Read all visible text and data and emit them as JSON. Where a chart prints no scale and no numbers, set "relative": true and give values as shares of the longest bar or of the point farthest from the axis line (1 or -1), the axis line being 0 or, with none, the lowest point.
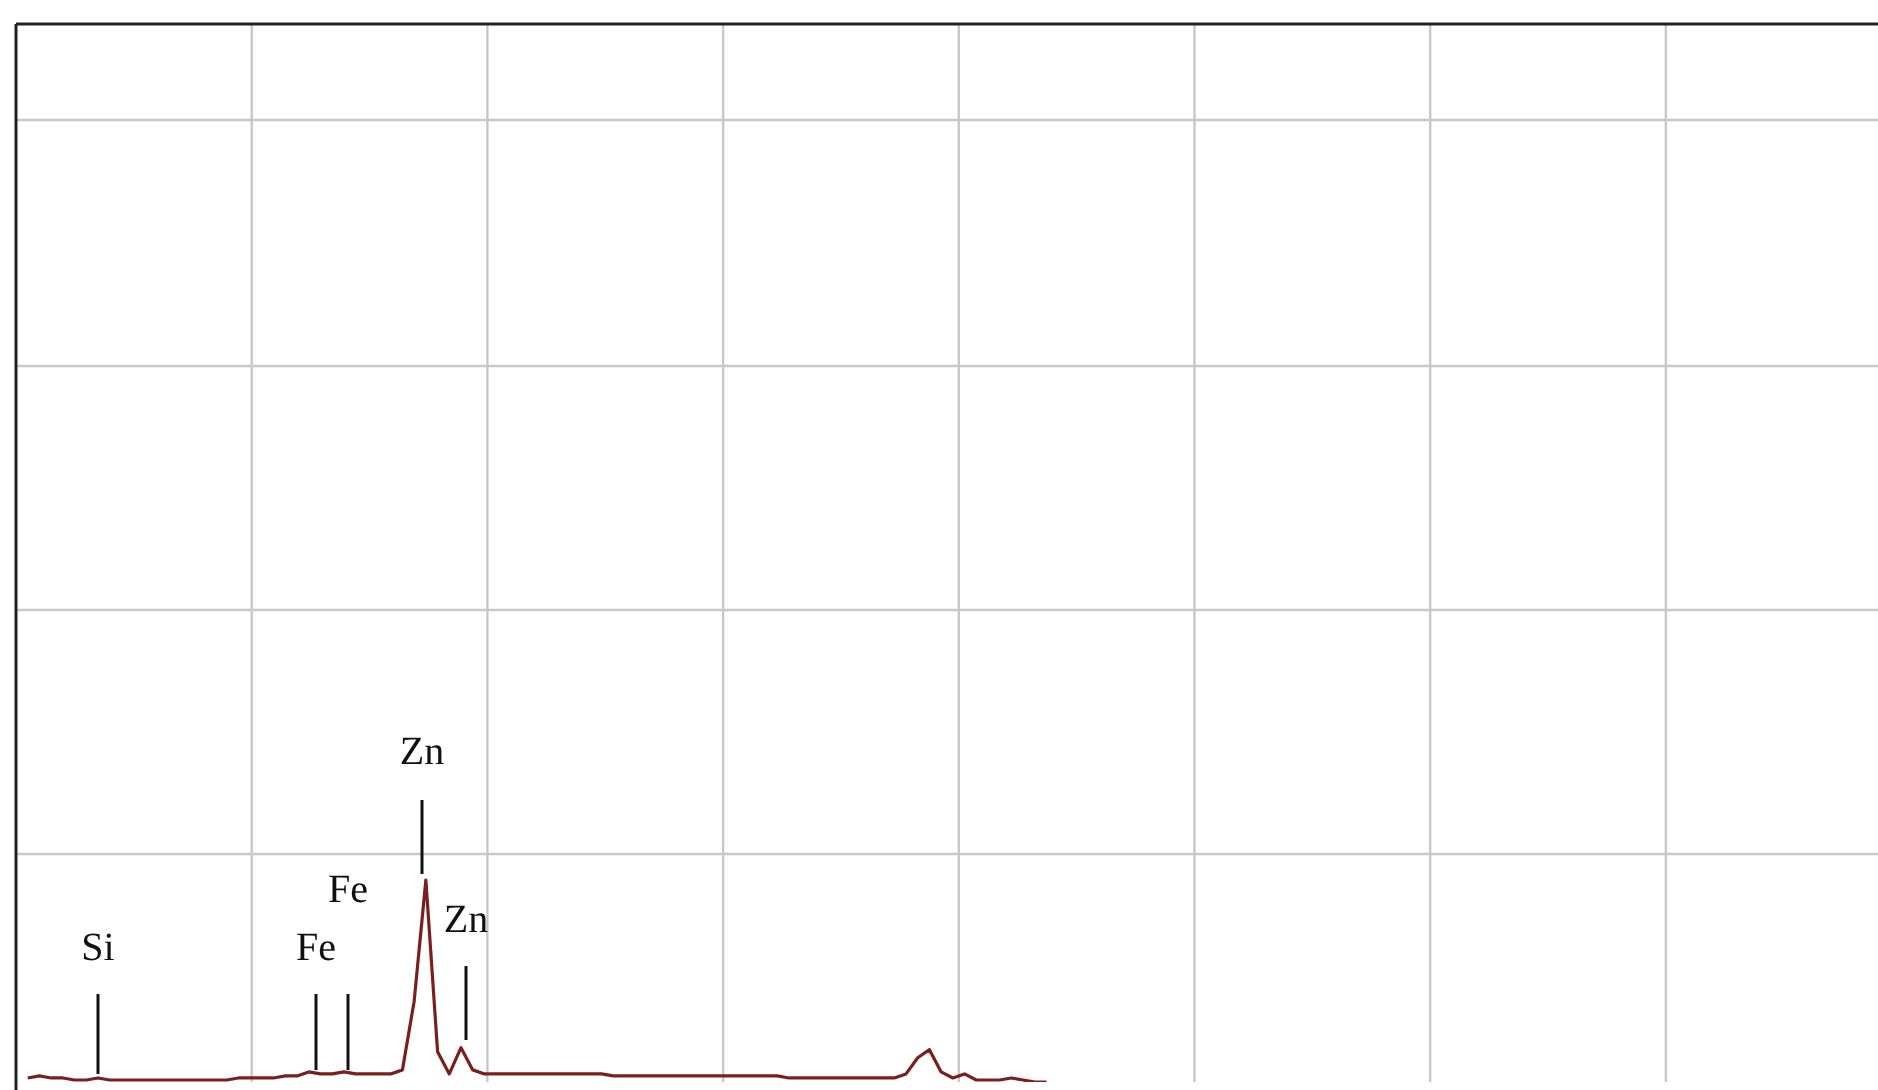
{
  "chart_data": {
    "type": "line",
    "relative": true,
    "grid": true,
    "categories": [
      null,
      null,
      null,
      null,
      null,
      null,
      null,
      null,
      null,
      null,
      null,
      null,
      null,
      null,
      null,
      null,
      null,
      null,
      null,
      null,
      null,
      null,
      null,
      null,
      null,
      null,
      null,
      null,
      null,
      null,
      null,
      null,
      null,
      null,
      null,
      null,
      null,
      null,
      null,
      null,
      null,
      null,
      null,
      null,
      null,
      null,
      null,
      null,
      null,
      null,
      null,
      null,
      null,
      null,
      null,
      null,
      null,
      null,
      null,
      null,
      null,
      null,
      null,
      null,
      null,
      null,
      null,
      null,
      null,
      null,
      null,
      null,
      null,
      null,
      null,
      null,
      null,
      null,
      null,
      null,
      null,
      null,
      null,
      null,
      null,
      null,
      null,
      null,
      null,
      null,
      null,
      null,
      null,
      null,
      null,
      null,
      null,
      null,
      null,
      null,
      null,
      null,
      null,
      null,
      null,
      null,
      null,
      null,
      null,
      null,
      null,
      null,
      null,
      null,
      null,
      null,
      null,
      null,
      null,
      null,
      null,
      null,
      null,
      null,
      null,
      null,
      null,
      null,
      null,
      null,
      null,
      null,
      null,
      null,
      null,
      null,
      null,
      null,
      null,
      null,
      null,
      null,
      null,
      null,
      null,
      null,
      null,
      null,
      null,
      null,
      null,
      null,
      null,
      null,
      null,
      null,
      null,
      null,
      null,
      null
    ],
    "series": [
      {
        "color": "#7a1f1f",
        "values": [
          null,
          0.02,
          0.03,
          0.02,
          0.02,
          0.01,
          0.01,
          0.02,
          0.01,
          0.01,
          0.01,
          0.01,
          0.01,
          0.01,
          0.01,
          0.01,
          0.01,
          0.01,
          0.01,
          0.02,
          0.02,
          0.02,
          0.02,
          0.03,
          0.03,
          0.05,
          0.04,
          0.04,
          0.05,
          0.04,
          0.04,
          0.04,
          0.04,
          0.06,
          0.4,
          1,
          0.15,
          0.04,
          0.17,
          0.06,
          0.04,
          0.04,
          0.04,
          0.04,
          0.04,
          0.04,
          0.04,
          0.04,
          0.04,
          0.04,
          0.04,
          0.03,
          0.03,
          0.03,
          0.03,
          0.03,
          0.03,
          0.03,
          0.03,
          0.03,
          0.03,
          0.03,
          0.03,
          0.03,
          0.03,
          0.03,
          0.02,
          0.02,
          0.02,
          0.02,
          0.02,
          0.02,
          0.02,
          0.02,
          0.02,
          0.02,
          0.04,
          0.12,
          0.16,
          0.05,
          0.02,
          0.04,
          0.01,
          0.01,
          0.01,
          0.02,
          0.01,
          0,
          0,
          null,
          null,
          null,
          null,
          null,
          null,
          null,
          null,
          null,
          null,
          null,
          null,
          null,
          null,
          null,
          null,
          null,
          null,
          null,
          null,
          null,
          null,
          null,
          null,
          null,
          null,
          null,
          null,
          null,
          null,
          null,
          null,
          null,
          null,
          null,
          null,
          null,
          null,
          null,
          null,
          null,
          null,
          null,
          null,
          null,
          null,
          null,
          null,
          null,
          null,
          null,
          null,
          null,
          null,
          null,
          null,
          null,
          null,
          null,
          null,
          null,
          null,
          null,
          null,
          null,
          null,
          null,
          null,
          null,
          null,
          null
        ]
      }
    ],
    "annotations": [
      "Si",
      "Fe",
      "Fe",
      "Zn",
      "Zn"
    ]
  }
}
